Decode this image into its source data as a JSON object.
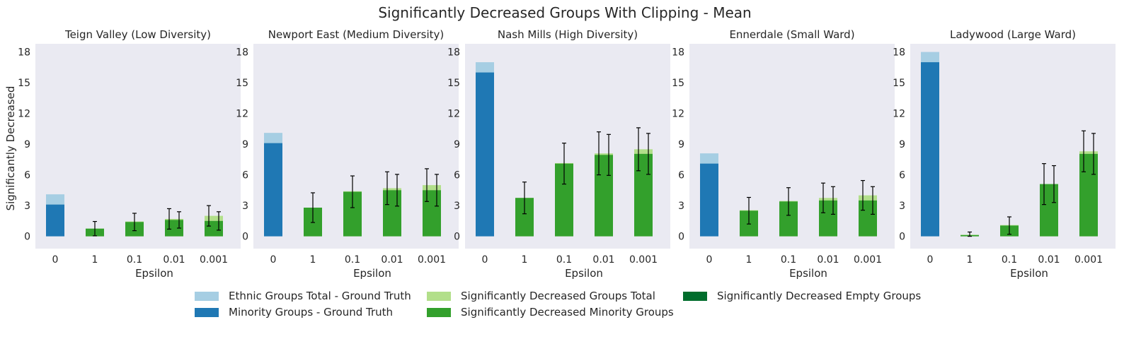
{
  "figure_title": "Significantly Decreased Groups With Clipping - Mean",
  "colors": {
    "ethnic_total_gt": "#a6cee3",
    "minority_gt": "#1f78b4",
    "sig_total": "#b2df8a",
    "sig_minority": "#33a02c",
    "sig_empty": "#006d2c",
    "panel_bg": "#eaeaf2",
    "errorbar": "#000000"
  },
  "legend": [
    {
      "label": "Ethnic Groups Total - Ground Truth",
      "color_key": "ethnic_total_gt"
    },
    {
      "label": "Minority Groups - Ground Truth",
      "color_key": "minority_gt"
    },
    {
      "label": "Significantly Decreased Groups Total",
      "color_key": "sig_total"
    },
    {
      "label": "Significantly Decreased Minority Groups",
      "color_key": "sig_minority"
    },
    {
      "label": "Significantly Decreased Empty Groups",
      "color_key": "sig_empty"
    }
  ],
  "chart_data": [
    {
      "type": "bar",
      "title": "Teign Valley (Low Diversity)",
      "xlabel": "Epsilon",
      "ylabel": "Significantly Decreased",
      "categories": [
        "0",
        "1",
        "0.1",
        "0.01",
        "0.001"
      ],
      "ylim": [
        -1.2,
        18.8
      ],
      "yticks": [
        0,
        3,
        6,
        9,
        12,
        15,
        18
      ],
      "ground_truth": {
        "ethnic_total": 4.1,
        "minority": 3.1
      },
      "series": [
        {
          "name": "Significantly Decreased Groups Total",
          "values": [
            null,
            0.75,
            1.45,
            1.7,
            2.0
          ],
          "errors": [
            null,
            null,
            null,
            1.0,
            1.0
          ]
        },
        {
          "name": "Significantly Decreased Minority Groups",
          "values": [
            null,
            0.75,
            1.4,
            1.6,
            1.5
          ],
          "errors": [
            null,
            0.7,
            0.85,
            0.8,
            0.9
          ]
        }
      ]
    },
    {
      "type": "bar",
      "title": "Newport East (Medium Diversity)",
      "xlabel": "Epsilon",
      "ylabel": "",
      "categories": [
        "0",
        "1",
        "0.1",
        "0.01",
        "0.001"
      ],
      "ylim": [
        -1.2,
        18.8
      ],
      "yticks": [
        0,
        3,
        6,
        9,
        12,
        15,
        18
      ],
      "ground_truth": {
        "ethnic_total": 10.1,
        "minority": 9.1
      },
      "series": [
        {
          "name": "Significantly Decreased Groups Total",
          "values": [
            null,
            2.8,
            4.4,
            4.7,
            5.0
          ],
          "errors": [
            null,
            null,
            null,
            1.6,
            1.6
          ]
        },
        {
          "name": "Significantly Decreased Minority Groups",
          "values": [
            null,
            2.8,
            4.35,
            4.5,
            4.5
          ],
          "errors": [
            null,
            1.45,
            1.55,
            1.55,
            1.55
          ]
        }
      ]
    },
    {
      "type": "bar",
      "title": "Nash Mills (High Diversity)",
      "xlabel": "Epsilon",
      "ylabel": "",
      "categories": [
        "0",
        "1",
        "0.1",
        "0.01",
        "0.001"
      ],
      "ylim": [
        -1.2,
        18.8
      ],
      "yticks": [
        0,
        3,
        6,
        9,
        12,
        15,
        18
      ],
      "ground_truth": {
        "ethnic_total": 17.0,
        "minority": 16.0
      },
      "series": [
        {
          "name": "Significantly Decreased Groups Total",
          "values": [
            null,
            3.75,
            7.15,
            8.1,
            8.5
          ],
          "errors": [
            null,
            null,
            null,
            2.1,
            2.1
          ]
        },
        {
          "name": "Significantly Decreased Minority Groups",
          "values": [
            null,
            3.75,
            7.1,
            7.95,
            8.05
          ],
          "errors": [
            null,
            1.55,
            2.0,
            2.0,
            2.0
          ]
        }
      ]
    },
    {
      "type": "bar",
      "title": "Ennerdale (Small Ward)",
      "xlabel": "Epsilon",
      "ylabel": "",
      "categories": [
        "0",
        "1",
        "0.1",
        "0.01",
        "0.001"
      ],
      "ylim": [
        -1.2,
        18.8
      ],
      "yticks": [
        0,
        3,
        6,
        9,
        12,
        15,
        18
      ],
      "ground_truth": {
        "ethnic_total": 8.1,
        "minority": 7.1
      },
      "series": [
        {
          "name": "Significantly Decreased Groups Total",
          "values": [
            null,
            2.55,
            3.45,
            3.75,
            4.0
          ],
          "errors": [
            null,
            null,
            null,
            1.45,
            1.45
          ]
        },
        {
          "name": "Significantly Decreased Minority Groups",
          "values": [
            null,
            2.5,
            3.4,
            3.5,
            3.5
          ],
          "errors": [
            null,
            1.3,
            1.35,
            1.35,
            1.35
          ]
        }
      ]
    },
    {
      "type": "bar",
      "title": "Ladywood (Large Ward)",
      "xlabel": "Epsilon",
      "ylabel": "",
      "categories": [
        "0",
        "1",
        "0.1",
        "0.01",
        "0.001"
      ],
      "ylim": [
        -1.2,
        18.8
      ],
      "yticks": [
        0,
        3,
        6,
        9,
        12,
        15,
        18
      ],
      "ground_truth": {
        "ethnic_total": 18.0,
        "minority": 17.0
      },
      "series": [
        {
          "name": "Significantly Decreased Groups Total",
          "values": [
            null,
            0.15,
            1.1,
            5.1,
            8.3
          ],
          "errors": [
            null,
            null,
            null,
            2.0,
            2.0
          ]
        },
        {
          "name": "Significantly Decreased Minority Groups",
          "values": [
            null,
            0.12,
            1.05,
            5.1,
            8.05
          ],
          "errors": [
            null,
            0.3,
            0.85,
            1.8,
            2.0
          ]
        }
      ]
    }
  ]
}
